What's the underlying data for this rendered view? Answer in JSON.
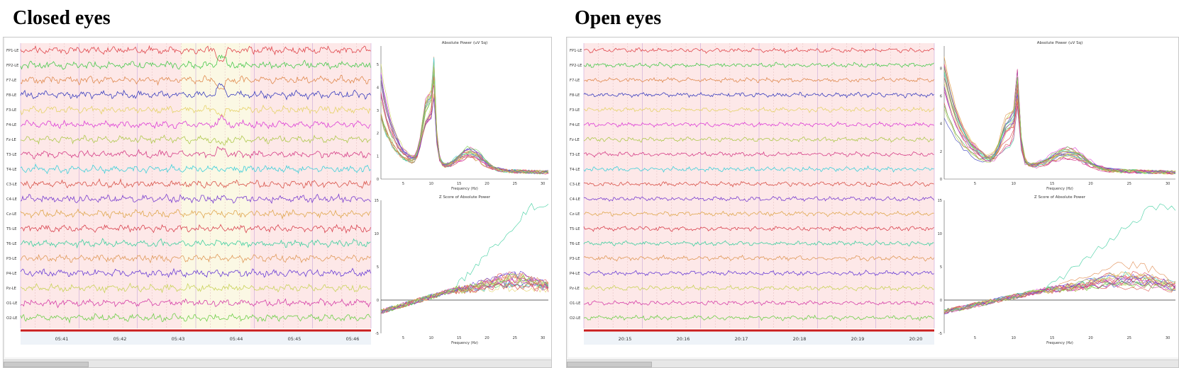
{
  "channels": [
    "FP1-LE",
    "FP2-LE",
    "F7-LE",
    "F8-LE",
    "F3-LE",
    "F4-LE",
    "Fz-LE",
    "T3-LE",
    "T4-LE",
    "C3-LE",
    "C4-LE",
    "Cz-LE",
    "T5-LE",
    "T6-LE",
    "P3-LE",
    "P4-LE",
    "Pz-LE",
    "O1-LE",
    "O2-LE"
  ],
  "channel_colors": [
    "#e0474c",
    "#49c94d",
    "#e08a4f",
    "#3b3fbf",
    "#e6d36a",
    "#dd3fd6",
    "#b0c94e",
    "#d63f88",
    "#3fd0da",
    "#d9534a",
    "#7a3fd0",
    "#e0a850",
    "#d9434f",
    "#3fcf9f",
    "#e09a5a",
    "#6a3fd6",
    "#c9d35a",
    "#d63fa8",
    "#6fcf4a"
  ],
  "closed": {
    "title": "Closed eyes",
    "times": [
      "05:41",
      "05:42",
      "05:43",
      "05:44",
      "05:45",
      "05:46"
    ],
    "abs_title": "Absolute Power (uV Sq)",
    "z_title": "Z Score of Absolute Power",
    "x_label": "Frequency (Hz)",
    "abs_yticks": [
      "0",
      "1",
      "2",
      "3",
      "4",
      "5"
    ],
    "z_yticks": [
      "-5",
      "0",
      "5",
      "10",
      "15"
    ],
    "xticks": [
      "5",
      "10",
      "15",
      "20",
      "25",
      "30"
    ]
  },
  "open": {
    "title": "Open eyes",
    "times": [
      "20:15",
      "20:16",
      "20:17",
      "20:18",
      "20:19",
      "20:20"
    ],
    "abs_title": "Absolute Power (uV Sq)",
    "z_title": "Z Score of Absolute Power",
    "x_label": "Frequency (Hz)",
    "abs_yticks": [
      "0",
      "2",
      "4",
      "6",
      "8"
    ],
    "z_yticks": [
      "-5",
      "0",
      "5",
      "10",
      "15"
    ],
    "xticks": [
      "5",
      "10",
      "15",
      "20",
      "25",
      "30"
    ]
  }
}
